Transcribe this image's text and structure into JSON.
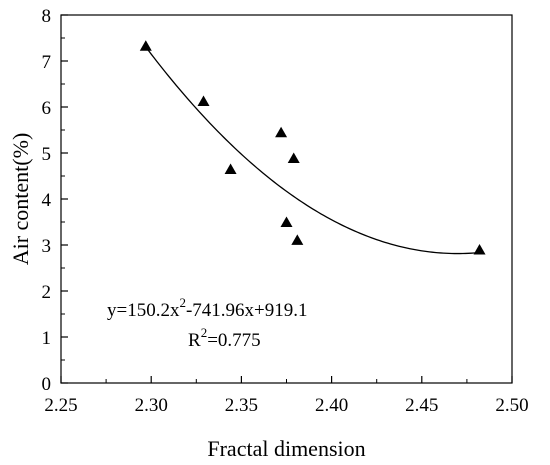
{
  "chart_data": {
    "type": "scatter",
    "title": "",
    "xlabel": "Fractal dimension",
    "ylabel": "Air content(%)",
    "xlim": [
      2.25,
      2.5
    ],
    "ylim": [
      0,
      8
    ],
    "xticks": [
      "2.25",
      "2.30",
      "2.35",
      "2.40",
      "2.45",
      "2.50"
    ],
    "yticks": [
      "0",
      "1",
      "2",
      "3",
      "4",
      "5",
      "6",
      "7",
      "8"
    ],
    "grid": false,
    "marker": "triangle",
    "color": "#000000",
    "series": [
      {
        "x": [
          2.297,
          2.329,
          2.344,
          2.372,
          2.375,
          2.379,
          2.381,
          2.482
        ],
        "y": [
          7.32,
          6.12,
          4.64,
          5.44,
          3.49,
          4.88,
          3.1,
          2.89
        ]
      }
    ],
    "fit": {
      "type": "polynomial-2",
      "coefficients": [
        150.2,
        -741.96,
        919.1
      ],
      "x_range": [
        2.297,
        2.482
      ]
    },
    "annotation": {
      "equation_parts": [
        "y=150.2x",
        "2",
        "-741.96x+919.1"
      ],
      "r2_parts": [
        "R",
        "2",
        "=0.775"
      ]
    }
  }
}
